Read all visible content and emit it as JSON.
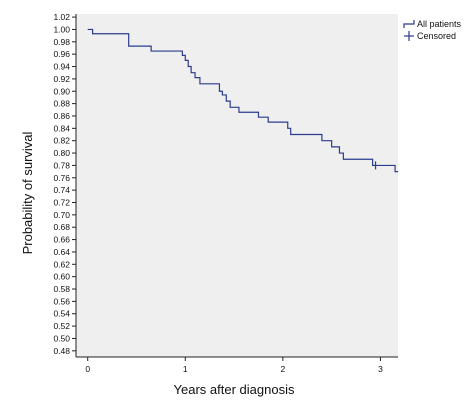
{
  "chart_data": {
    "type": "line",
    "xlabel": "Years after diagnosis",
    "ylabel": "Probability of survival",
    "xlim": [
      -0.12,
      3.18
    ],
    "ylim": [
      0.47,
      1.025
    ],
    "x_ticks": [
      0,
      1,
      2,
      3
    ],
    "y_ticks": [
      1.02,
      1.0,
      0.98,
      0.96,
      0.94,
      0.92,
      0.9,
      0.88,
      0.86,
      0.84,
      0.82,
      0.8,
      0.78,
      0.76,
      0.74,
      0.72,
      0.7,
      0.68,
      0.66,
      0.64,
      0.62,
      0.6,
      0.58,
      0.56,
      0.54,
      0.52,
      0.5,
      0.48
    ],
    "y_tick_labels": [
      "1.02",
      "1.00",
      "0.98",
      "0.96",
      "0.94",
      "0.92",
      "0.90",
      "0.88",
      "0.86",
      "0.84",
      "0.82",
      "0.80",
      "0.78",
      "0.76",
      "0.74",
      "0.72",
      "0.70",
      "0.68",
      "0.66",
      "0.64",
      "0.62",
      "0.60",
      "0.58",
      "0.56",
      "0.54",
      "0.52",
      "0.50",
      "0.48"
    ],
    "grid": false,
    "legend_position": "top-right",
    "plot_background": "#efefef",
    "line_color": "#2b3c8c",
    "series": [
      {
        "name": "All patients",
        "style": "step",
        "points": [
          [
            0.0,
            1.0
          ],
          [
            0.05,
            0.993
          ],
          [
            0.42,
            0.973
          ],
          [
            0.65,
            0.965
          ],
          [
            0.97,
            0.958
          ],
          [
            1.0,
            0.95
          ],
          [
            1.03,
            0.94
          ],
          [
            1.06,
            0.93
          ],
          [
            1.1,
            0.922
          ],
          [
            1.15,
            0.912
          ],
          [
            1.35,
            0.9
          ],
          [
            1.38,
            0.894
          ],
          [
            1.42,
            0.884
          ],
          [
            1.46,
            0.874
          ],
          [
            1.55,
            0.866
          ],
          [
            1.75,
            0.858
          ],
          [
            1.85,
            0.85
          ],
          [
            2.05,
            0.84
          ],
          [
            2.08,
            0.83
          ],
          [
            2.4,
            0.82
          ],
          [
            2.5,
            0.81
          ],
          [
            2.58,
            0.8
          ],
          [
            2.62,
            0.79
          ],
          [
            2.92,
            0.78
          ],
          [
            3.15,
            0.77
          ],
          [
            3.18,
            0.77
          ]
        ],
        "censored": [
          [
            2.95,
            0.78
          ]
        ]
      }
    ],
    "legend": [
      {
        "label": "All patients",
        "marker": "step"
      },
      {
        "label": "Censored",
        "marker": "plus"
      }
    ]
  }
}
